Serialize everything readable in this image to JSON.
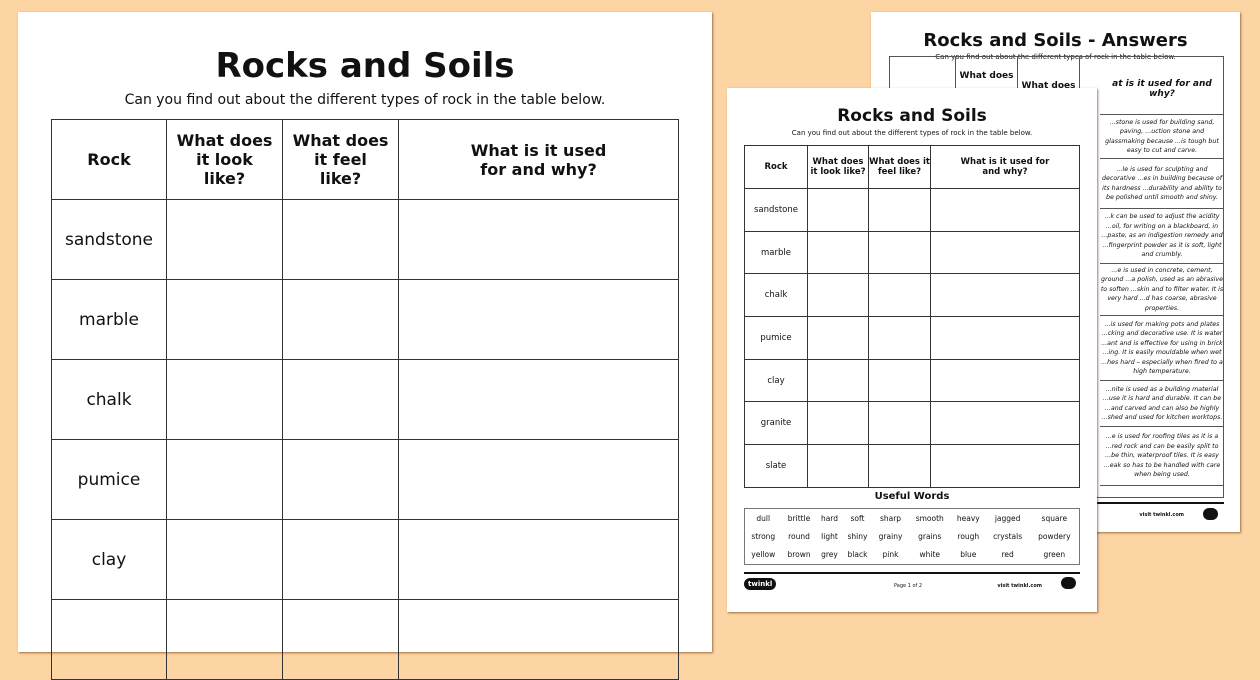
{
  "colors": {
    "background": "#fdd4a4"
  },
  "worksheet": {
    "title": "Rocks and Soils",
    "subtitle": "Can you find out about the different types of rock in the table below.",
    "headers": [
      "Rock",
      "What does it look like?",
      "What does it feel like?",
      "What is it used for and why?"
    ],
    "rocks": [
      "sandstone",
      "marble",
      "chalk",
      "pumice",
      "clay",
      "granite",
      "slate"
    ]
  },
  "useful_words": {
    "title": "Useful Words",
    "rows": [
      [
        "dull",
        "brittle",
        "hard",
        "soft",
        "sharp",
        "smooth",
        "heavy",
        "jagged",
        "square"
      ],
      [
        "strong",
        "round",
        "light",
        "shiny",
        "grainy",
        "grains",
        "rough",
        "crystals",
        "powdery"
      ],
      [
        "yellow",
        "brown",
        "grey",
        "black",
        "pink",
        "white",
        "blue",
        "red",
        "green"
      ]
    ]
  },
  "footer": {
    "logo": "twinkl",
    "page": "Page 1 of 2",
    "site": "visit twinkl.com"
  },
  "answers": {
    "title": "Rocks and Soils - Answers",
    "subtitle": "Can you find out about the different types of rock in the table below.",
    "headers": [
      "What does",
      "What does",
      "at is it used for and why?"
    ],
    "items": [
      "...stone is used for building sand, paving, ...uction stone and glassmaking because ...is tough but easy to cut and carve.",
      "...le is used for sculpting and decorative ...es in building because of its hardness ...durability and ability to be polished until smooth and shiny.",
      "...k can be used to adjust the acidity ...oil, for writing on a blackboard, in ...paste, as an indigestion remedy and ...fingerprint powder as it is soft, light and crumbly.",
      "...e is used in concrete, cement, ground ...a polish, used as an abrasive to soften ...skin and to filter water. It is very hard ...d has coarse, abrasive properties.",
      "...is used for making pots and plates ...cking and decorative use. It is water ...ant and is effective for using in brick ...ing. It is easily mouldable when wet ...hes hard – especially when fired to a high temperature.",
      "...nite is used as a building material ...use it is hard and durable. It can be ...and carved and can also be highly ...shed and used for kitchen worktops.",
      "...e is used for roofing tiles as it is a ...red rock and can be easily split to ...be thin, waterproof tiles. It is easy ...eak so has to be handled with care when being used."
    ]
  }
}
